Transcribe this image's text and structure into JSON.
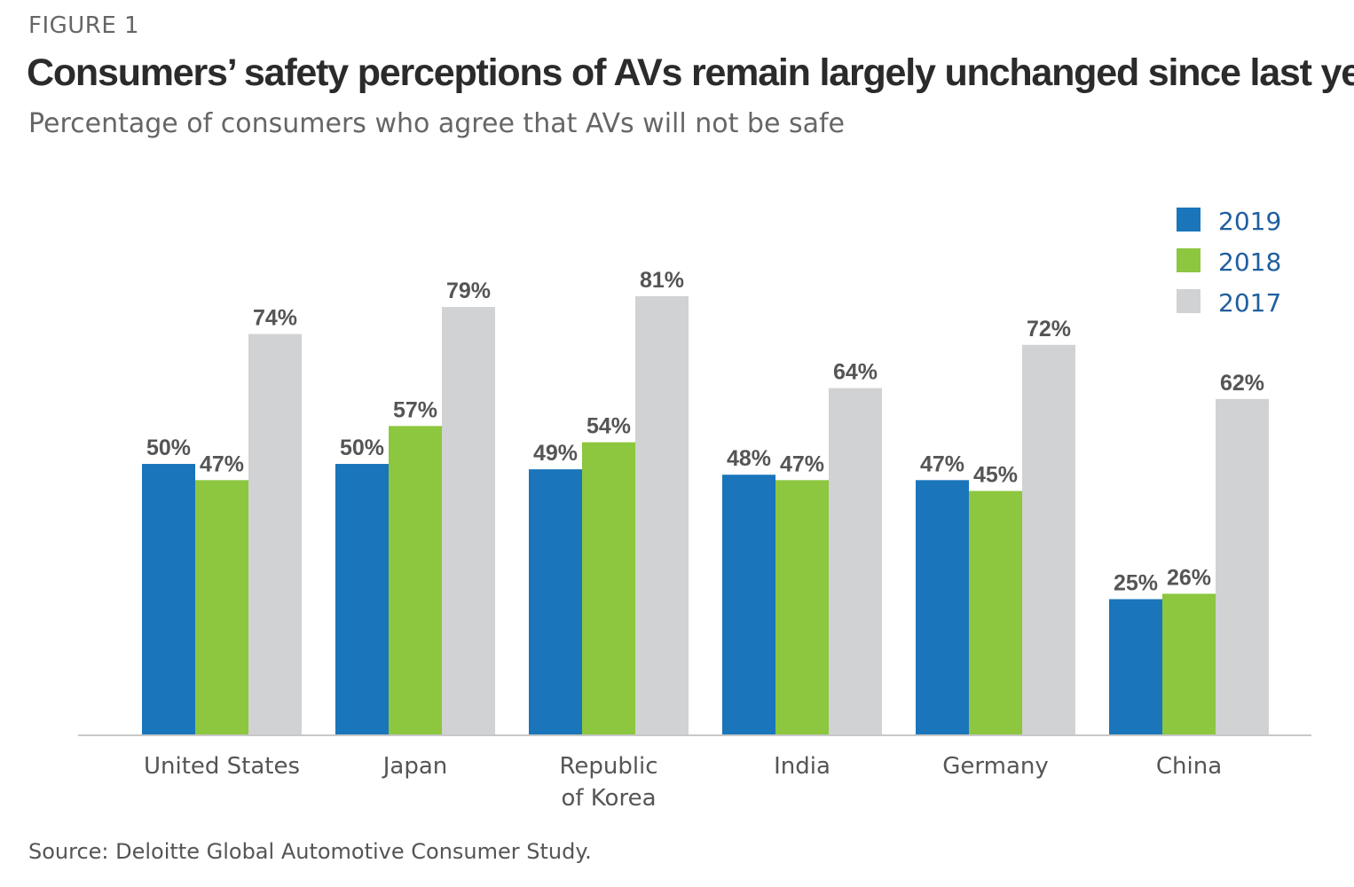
{
  "header": {
    "figure_label": "FIGURE 1",
    "title": "Consumers’ safety perceptions of AVs remain largely unchanged since last year",
    "subtitle": "Percentage of consumers who agree that AVs will not be safe"
  },
  "footer": {
    "source": "Source: Deloitte Global Automotive Consumer Study."
  },
  "chart_data": {
    "type": "bar",
    "title": "Consumers’ safety perceptions of AVs remain largely unchanged since last year",
    "subtitle": "Percentage of consumers who agree that AVs will not be safe",
    "categories": [
      "United States",
      "Japan",
      "Republic of Korea",
      "India",
      "Germany",
      "China"
    ],
    "category_lines": [
      [
        "United States"
      ],
      [
        "Japan"
      ],
      [
        "Republic",
        "of Korea"
      ],
      [
        "India"
      ],
      [
        "Germany"
      ],
      [
        "China"
      ]
    ],
    "series": [
      {
        "name": "2019",
        "color": "#1a75bb",
        "values": [
          50,
          50,
          49,
          48,
          47,
          25
        ],
        "labels": [
          "50%",
          "50%",
          "49%",
          "48%",
          "47%",
          "25%"
        ]
      },
      {
        "name": "2018",
        "color": "#8dc63f",
        "values": [
          47,
          57,
          54,
          47,
          45,
          26
        ],
        "labels": [
          "47%",
          "57%",
          "54%",
          "47%",
          "45%",
          "26%"
        ]
      },
      {
        "name": "2017",
        "color": "#d0d2d3",
        "values": [
          74,
          79,
          81,
          64,
          72,
          62
        ],
        "labels": [
          "74%",
          "79%",
          "81%",
          "64%",
          "72%",
          "62%"
        ]
      }
    ],
    "ylim": [
      0,
      100
    ],
    "grid": false,
    "legend_position": "top-right",
    "xlabel": "",
    "ylabel": ""
  }
}
